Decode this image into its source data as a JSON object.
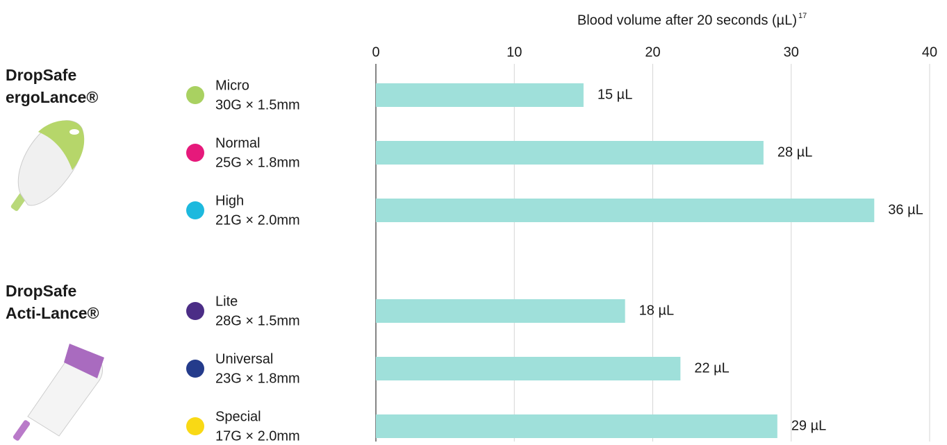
{
  "chart_data": {
    "type": "bar",
    "title": "Blood volume after 20 seconds (µL)",
    "title_note": "17",
    "xlim": [
      0,
      40
    ],
    "xticks": [
      0,
      10,
      20,
      30,
      40
    ],
    "grid": true,
    "color": "#9fe0da",
    "groups": [
      {
        "name": [
          "DropSafe",
          "ergoLance®"
        ],
        "categories": [
          "Micro",
          "Normal",
          "High"
        ],
        "specs": [
          "30G × 1.5mm",
          "25G × 1.8mm",
          "21G × 2.0mm"
        ],
        "colors": [
          "#a9d161",
          "#e6197b",
          "#1db9de"
        ],
        "values": [
          15,
          28,
          36
        ],
        "value_labels": [
          "15 µL",
          "28 µL",
          "36 µL"
        ]
      },
      {
        "name": [
          "DropSafe",
          "Acti-Lance®"
        ],
        "categories": [
          "Lite",
          "Universal",
          "Special"
        ],
        "specs": [
          "28G × 1.5mm",
          "23G × 1.8mm",
          "17G × 2.0mm"
        ],
        "colors": [
          "#4b2d86",
          "#243b8b",
          "#f9d915"
        ],
        "values": [
          18,
          22,
          29
        ],
        "value_labels": [
          "18 µL",
          "22 µL",
          "29 µL"
        ]
      }
    ]
  }
}
